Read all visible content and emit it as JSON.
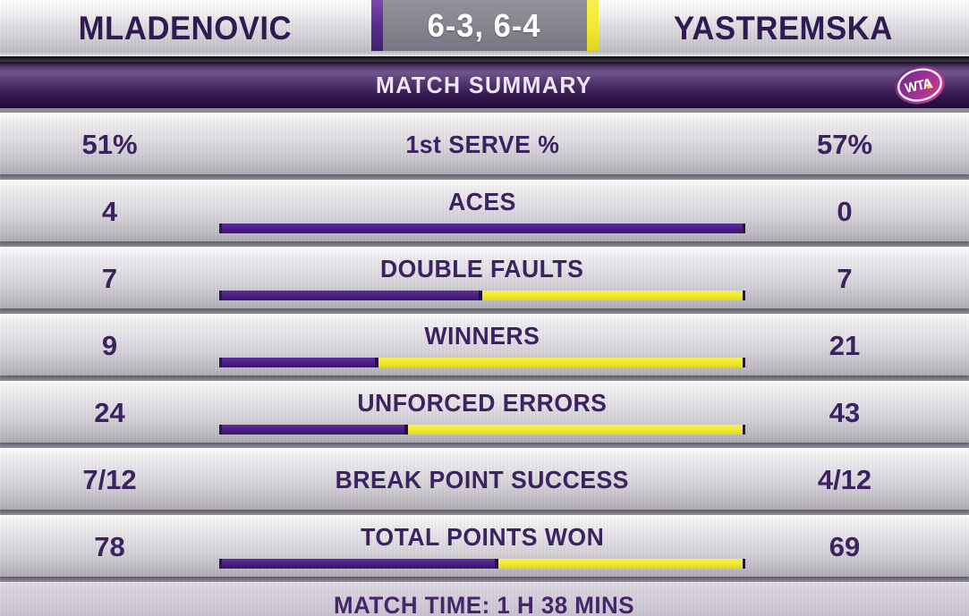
{
  "header": {
    "player_left": "MLADENOVIC",
    "player_right": "YASTREMSKA",
    "score": "6-3, 6-4"
  },
  "summary": {
    "title": "MATCH SUMMARY",
    "logo_text": "WTA"
  },
  "stats": {
    "rows": [
      {
        "label": "1st SERVE %",
        "left": "51%",
        "right": "57%",
        "bar": false
      },
      {
        "label": "ACES",
        "left": "4",
        "right": "0",
        "bar": true,
        "left_value": 4,
        "right_value": 0
      },
      {
        "label": "DOUBLE FAULTS",
        "left": "7",
        "right": "7",
        "bar": true,
        "left_value": 7,
        "right_value": 7
      },
      {
        "label": "WINNERS",
        "left": "9",
        "right": "21",
        "bar": true,
        "left_value": 9,
        "right_value": 21
      },
      {
        "label": "UNFORCED ERRORS",
        "left": "24",
        "right": "43",
        "bar": true,
        "left_value": 24,
        "right_value": 43
      },
      {
        "label": "BREAK POINT SUCCESS",
        "left": "7/12",
        "right": "4/12",
        "bar": false
      },
      {
        "label": "TOTAL POINTS WON",
        "left": "78",
        "right": "69",
        "bar": true,
        "left_value": 78,
        "right_value": 69
      }
    ]
  },
  "footer": {
    "match_time": "MATCH TIME: 1 H 38 MINS"
  },
  "colors": {
    "purple_bar": "#4b1f86",
    "yellow_bar": "#f1e82e",
    "banner_purple": "#3c2159",
    "text_purple": "#3b2260",
    "name_purple": "#2f1b52",
    "silver_row": "#d2cfd5"
  },
  "chart_data": {
    "type": "bar",
    "title": "MATCH SUMMARY",
    "categories": [
      "1st SERVE %",
      "ACES",
      "DOUBLE FAULTS",
      "WINNERS",
      "UNFORCED ERRORS",
      "BREAK POINT SUCCESS",
      "TOTAL POINTS WON"
    ],
    "series": [
      {
        "name": "MLADENOVIC",
        "values": [
          "51%",
          4,
          7,
          9,
          24,
          "7/12",
          78
        ]
      },
      {
        "name": "YASTREMSKA",
        "values": [
          "57%",
          0,
          7,
          21,
          43,
          "4/12",
          69
        ]
      }
    ],
    "bar_share_left_pct": [
      null,
      100,
      50,
      30,
      35.8,
      null,
      53.1
    ],
    "annotations": [
      "6-3, 6-4",
      "MATCH TIME: 1 H 38 MINS"
    ],
    "legend_position": "top",
    "layout": "horizontal-proportion-bars"
  }
}
